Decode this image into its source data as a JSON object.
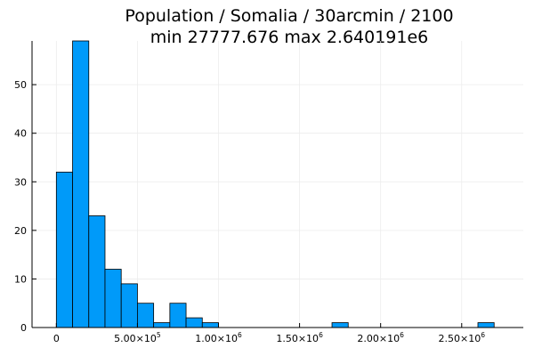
{
  "chart_data": {
    "type": "bar",
    "title_lines": [
      "Population / Somalia / 30arcmin / 2100",
      "min 27777.676  max 2.640191e6"
    ],
    "xlabel": "",
    "ylabel": "",
    "bin_width": 100000,
    "bin_starts": [
      0,
      100000,
      200000,
      300000,
      400000,
      500000,
      600000,
      700000,
      800000,
      900000,
      1000000,
      1100000,
      1200000,
      1300000,
      1400000,
      1500000,
      1600000,
      1700000,
      1800000,
      1900000,
      2000000,
      2100000,
      2200000,
      2300000,
      2400000,
      2500000,
      2600000
    ],
    "values": [
      32,
      59,
      23,
      12,
      9,
      5,
      1,
      5,
      2,
      1,
      0,
      0,
      0,
      0,
      0,
      0,
      0,
      1,
      0,
      0,
      0,
      0,
      0,
      0,
      0,
      0,
      1
    ],
    "xlim": [
      -150000,
      2880000
    ],
    "ylim": [
      0,
      59
    ],
    "x_ticks": [
      {
        "value": 0,
        "mantissa": "0",
        "exponent": ""
      },
      {
        "value": 500000,
        "mantissa": "5.00×10",
        "exponent": "5"
      },
      {
        "value": 1000000,
        "mantissa": "1.00×10",
        "exponent": "6"
      },
      {
        "value": 1500000,
        "mantissa": "1.50×10",
        "exponent": "6"
      },
      {
        "value": 2000000,
        "mantissa": "2.00×10",
        "exponent": "6"
      },
      {
        "value": 2500000,
        "mantissa": "2.50×10",
        "exponent": "6"
      }
    ],
    "y_ticks": [
      0,
      10,
      20,
      30,
      40,
      50
    ],
    "grid": true,
    "legend": "none",
    "colors": {
      "bar_fill": "#009af9",
      "bar_stroke": "#000000",
      "grid": "#ececec",
      "axis": "#000000"
    }
  }
}
